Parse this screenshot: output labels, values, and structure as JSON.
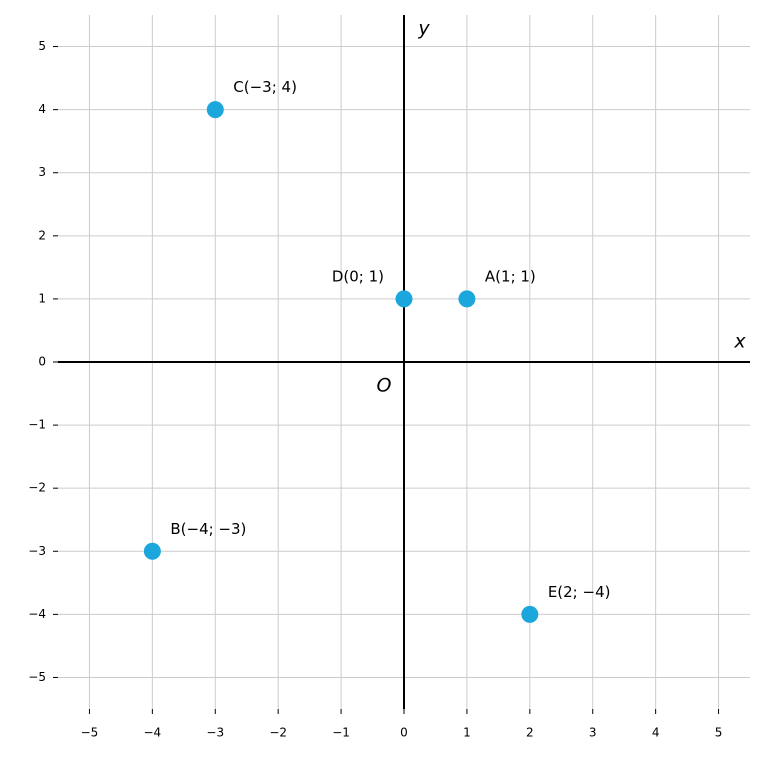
{
  "chart_data": {
    "type": "scatter",
    "x": [
      1,
      -4,
      -3,
      0,
      2
    ],
    "values": [
      1,
      -3,
      4,
      1,
      -4
    ],
    "point_labels": [
      "A(1; 1)",
      "B(−4; −3)",
      "C(−3; 4)",
      "D(0; 1)",
      "E(2; −4)"
    ],
    "color": "#1ba6dc",
    "x_label": "x",
    "y_label": "y",
    "origin_label": "O",
    "xlim": [
      -5.5,
      5.5
    ],
    "ylim": [
      -5.5,
      5.5
    ],
    "xticks": [
      {
        "value": -5,
        "label": "−5"
      },
      {
        "value": -4,
        "label": "−4"
      },
      {
        "value": -3,
        "label": "−3"
      },
      {
        "value": -2,
        "label": "−2"
      },
      {
        "value": -1,
        "label": "−1"
      },
      0,
      1,
      2,
      3,
      4,
      5
    ],
    "yticks": [
      {
        "value": -5,
        "label": "−5"
      },
      {
        "value": -4,
        "label": "−4"
      },
      {
        "value": -3,
        "label": "−3"
      },
      {
        "value": -2,
        "label": "−2"
      },
      {
        "value": -1,
        "label": "−1"
      },
      0,
      1,
      2,
      3,
      4,
      5
    ],
    "grid": true
  }
}
